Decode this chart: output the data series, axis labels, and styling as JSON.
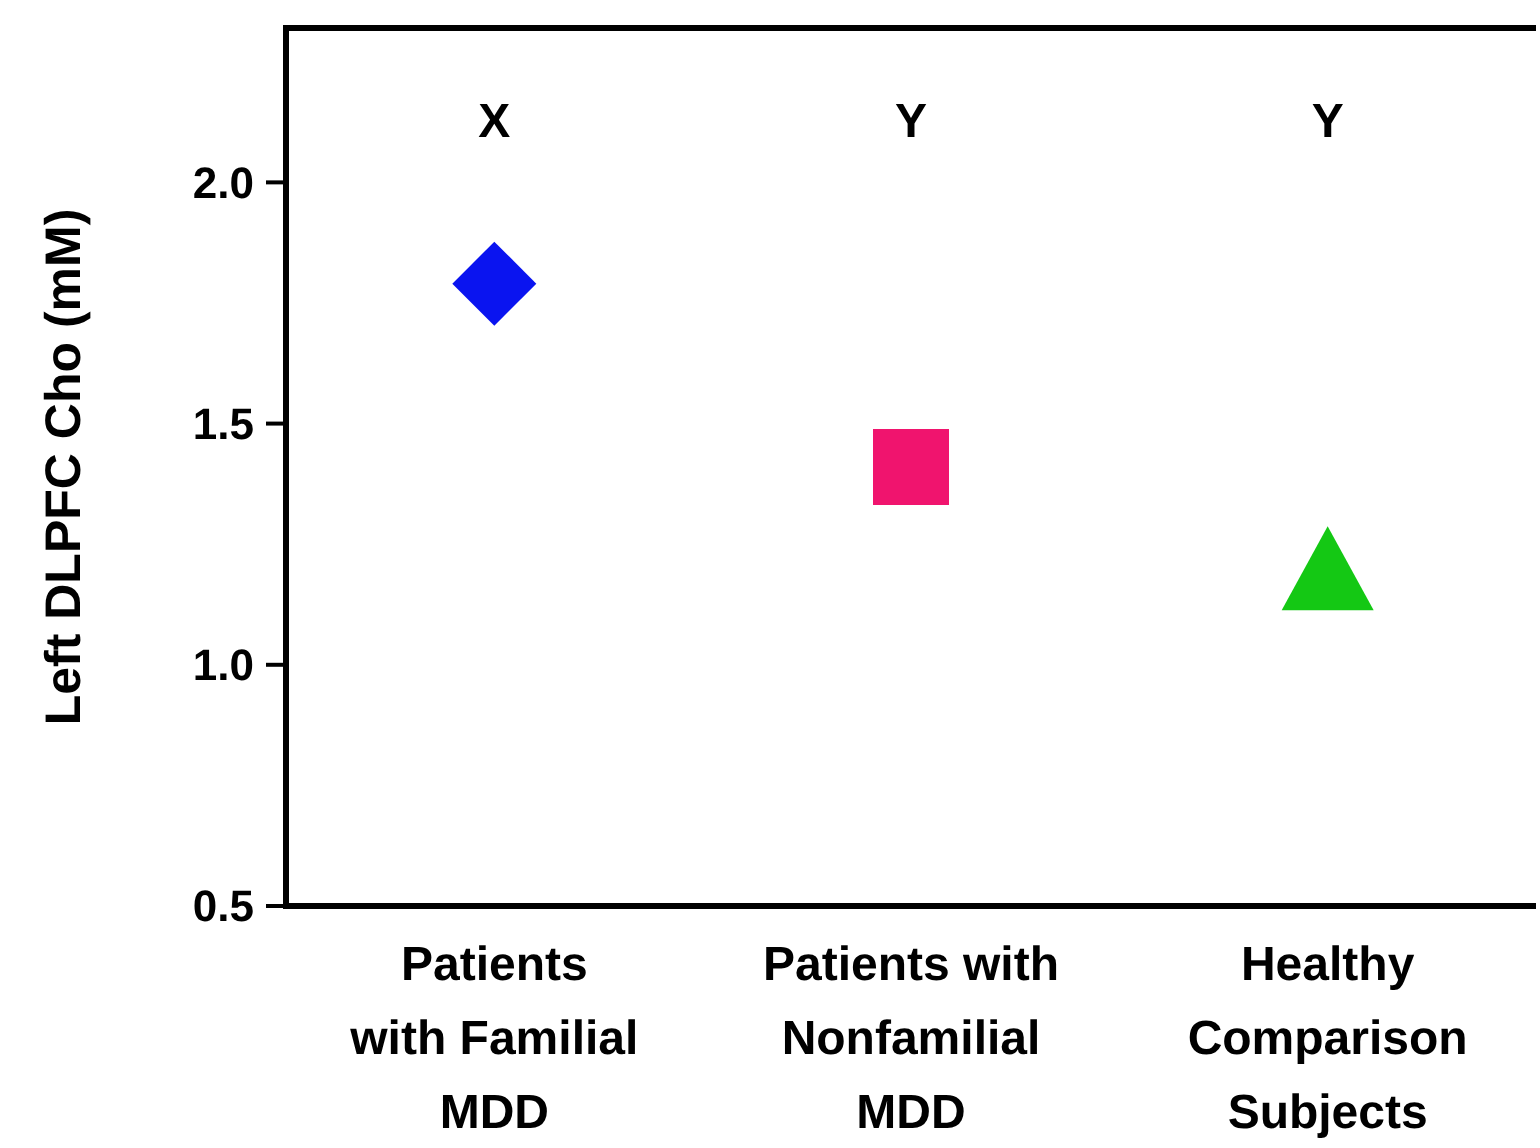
{
  "chart_data": {
    "type": "scatter",
    "ylabel": "Left DLPFC Cho (mM)",
    "categories": [
      "Patients\nwith Familial\nMDD",
      "Patients with\nNonfamilial\nMDD",
      "Healthy\nComparison\nSubjects"
    ],
    "series": [
      {
        "color": "#0a14f0",
        "marker": "diamond",
        "x": [
          "Patients\nwith Familial\nMDD"
        ],
        "values": [
          1.79
        ]
      },
      {
        "color": "#f0146e",
        "marker": "square",
        "x": [
          "Patients with\nNonfamilial\nMDD"
        ],
        "values": [
          1.41
        ]
      },
      {
        "color": "#14c814",
        "marker": "triangle",
        "x": [
          "Healthy\nComparison\nSubjects"
        ],
        "values": [
          1.2
        ]
      }
    ],
    "annotations": [
      "X",
      "Y",
      "Y"
    ],
    "ylim": [
      0.5,
      2.32
    ],
    "yticks": [
      {
        "value": 0.5,
        "label": "0.5"
      },
      {
        "value": 1,
        "label": "1.0"
      },
      {
        "value": 1.5,
        "label": "1.5"
      },
      {
        "value": 2,
        "label": "2.0"
      }
    ],
    "grid": false
  }
}
